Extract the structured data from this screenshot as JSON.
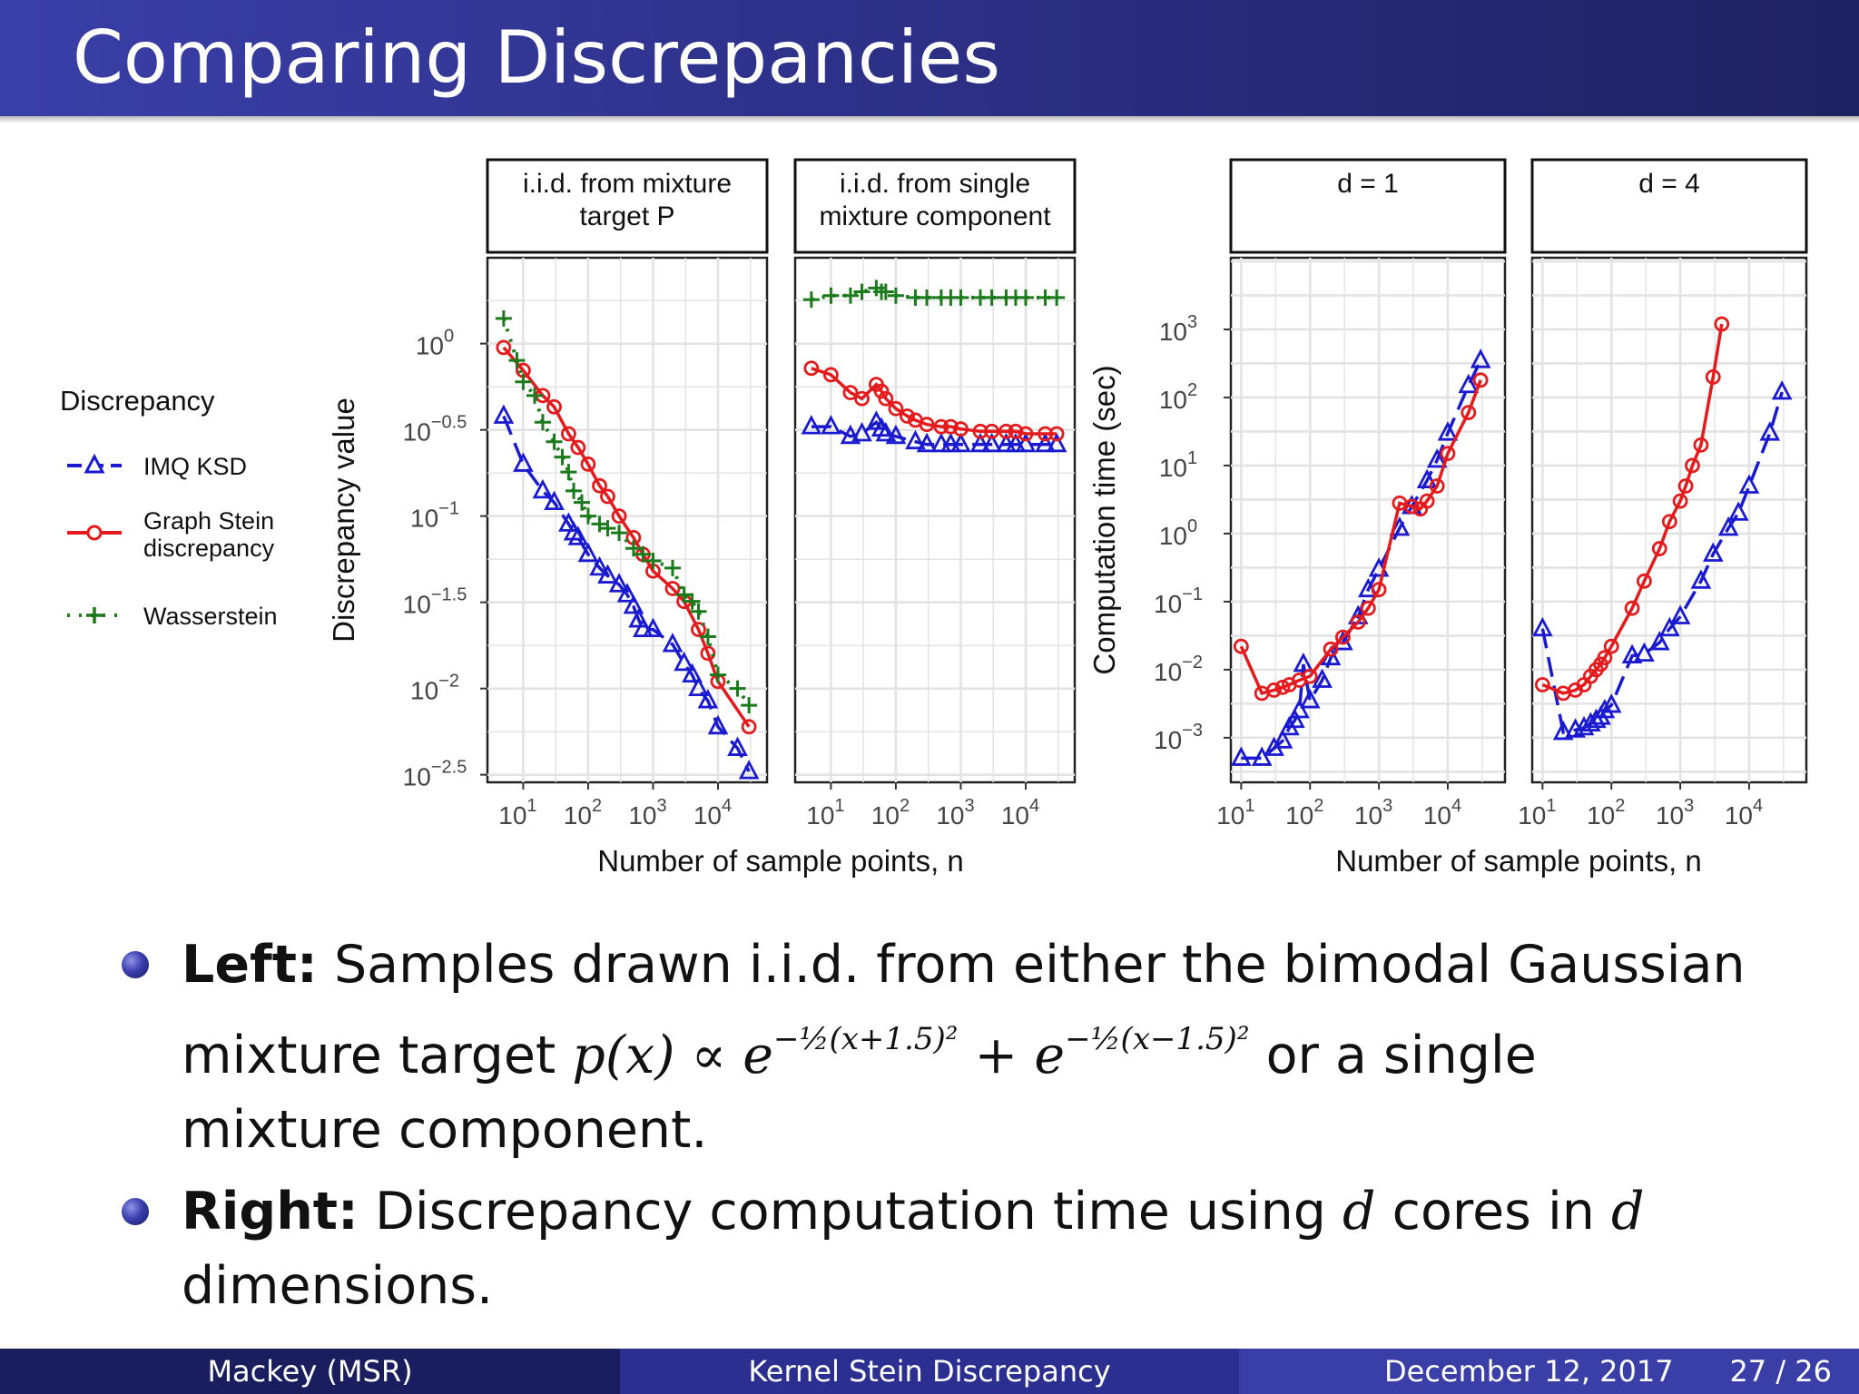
{
  "title": "Comparing Discrepancies",
  "legend": {
    "title": "Discrepancy",
    "items": [
      {
        "label": "IMQ KSD",
        "color": "#1a1ad0"
      },
      {
        "label": "Graph Stein discrepancy",
        "color": "#e41a1c"
      },
      {
        "label": "Wasserstein",
        "color": "#1b7a1b"
      }
    ]
  },
  "chart_data": [
    {
      "type": "line",
      "panel": "i.i.d. from mixture target P",
      "title": "i.i.d. from mixture target P",
      "xlabel": "Number of sample points, n",
      "ylabel": "Discrepancy value",
      "xscale": "log10",
      "yscale": "log10",
      "xlim": [
        3.2,
        50000
      ],
      "ylim": [
        0.003,
        3
      ],
      "xticks": [
        "10^1",
        "10^2",
        "10^3",
        "10^4"
      ],
      "yticks": [
        "10^0",
        "10^-0.5",
        "10^-1",
        "10^-1.5",
        "10^-2",
        "10^-2.5"
      ],
      "grid": true,
      "series": [
        {
          "name": "IMQ KSD",
          "x": [
            5,
            10,
            20,
            30,
            50,
            60,
            70,
            100,
            150,
            200,
            300,
            400,
            500,
            600,
            700,
            1000,
            2000,
            3000,
            4000,
            5000,
            7000,
            10000,
            20000,
            30000
          ],
          "y": [
            0.38,
            0.2,
            0.14,
            0.12,
            0.09,
            0.08,
            0.075,
            0.06,
            0.05,
            0.045,
            0.04,
            0.035,
            0.03,
            0.025,
            0.022,
            0.022,
            0.018,
            0.014,
            0.012,
            0.01,
            0.0085,
            0.006,
            0.0045,
            0.0033
          ]
        },
        {
          "name": "Graph Stein discrepancy",
          "x": [
            5,
            10,
            20,
            30,
            50,
            70,
            100,
            150,
            200,
            300,
            500,
            700,
            1000,
            2000,
            3000,
            5000,
            7000,
            10000,
            30000
          ],
          "y": [
            0.95,
            0.7,
            0.5,
            0.43,
            0.3,
            0.25,
            0.2,
            0.15,
            0.13,
            0.1,
            0.075,
            0.06,
            0.048,
            0.038,
            0.032,
            0.022,
            0.016,
            0.011,
            0.006
          ]
        },
        {
          "name": "Wasserstein",
          "x": [
            5,
            8,
            10,
            15,
            20,
            30,
            40,
            50,
            60,
            80,
            100,
            150,
            200,
            300,
            500,
            700,
            1000,
            2000,
            3000,
            4000,
            5000,
            7000,
            10000,
            20000,
            30000
          ],
          "y": [
            1.4,
            0.8,
            0.6,
            0.5,
            0.35,
            0.27,
            0.22,
            0.18,
            0.14,
            0.12,
            0.1,
            0.09,
            0.085,
            0.08,
            0.065,
            0.06,
            0.055,
            0.05,
            0.035,
            0.032,
            0.028,
            0.02,
            0.012,
            0.01,
            0.008
          ]
        }
      ]
    },
    {
      "type": "line",
      "panel": "i.i.d. from single mixture component",
      "title": "i.i.d. from single mixture component",
      "xlabel": "Number of sample points, n",
      "ylabel": "Discrepancy value",
      "xscale": "log10",
      "yscale": "log10",
      "xlim": [
        3.2,
        50000
      ],
      "ylim": [
        0.003,
        3
      ],
      "xticks": [
        "10^1",
        "10^2",
        "10^3",
        "10^4"
      ],
      "grid": true,
      "series": [
        {
          "name": "IMQ KSD",
          "x": [
            5,
            10,
            20,
            30,
            50,
            60,
            70,
            100,
            200,
            300,
            500,
            700,
            1000,
            2000,
            3000,
            5000,
            7000,
            10000,
            20000,
            30000
          ],
          "y": [
            0.33,
            0.33,
            0.29,
            0.3,
            0.35,
            0.32,
            0.3,
            0.29,
            0.27,
            0.26,
            0.26,
            0.26,
            0.26,
            0.26,
            0.26,
            0.26,
            0.26,
            0.26,
            0.26,
            0.26
          ]
        },
        {
          "name": "Graph Stein discrepancy",
          "x": [
            5,
            10,
            20,
            30,
            50,
            60,
            70,
            100,
            150,
            200,
            300,
            500,
            700,
            1000,
            2000,
            3000,
            5000,
            7000,
            10000,
            20000,
            30000
          ],
          "y": [
            0.72,
            0.66,
            0.52,
            0.48,
            0.58,
            0.53,
            0.48,
            0.42,
            0.38,
            0.36,
            0.34,
            0.33,
            0.33,
            0.32,
            0.31,
            0.31,
            0.31,
            0.31,
            0.3,
            0.3,
            0.3
          ]
        },
        {
          "name": "Wasserstein",
          "x": [
            5,
            10,
            20,
            30,
            50,
            60,
            70,
            100,
            200,
            300,
            500,
            700,
            1000,
            2000,
            3000,
            5000,
            7000,
            10000,
            20000,
            30000
          ],
          "y": [
            1.8,
            1.9,
            1.9,
            2.0,
            2.1,
            2.0,
            2.0,
            1.9,
            1.85,
            1.85,
            1.85,
            1.85,
            1.85,
            1.85,
            1.85,
            1.85,
            1.85,
            1.85,
            1.85,
            1.85
          ]
        }
      ]
    },
    {
      "type": "line",
      "panel": "d = 1",
      "title": "d = 1",
      "xlabel": "Number of sample points, n",
      "ylabel": "Computation time (sec)",
      "xscale": "log10",
      "yscale": "log10",
      "xlim": [
        8,
        60000
      ],
      "ylim": [
        0.00025,
        10000
      ],
      "xticks": [
        "10^1",
        "10^2",
        "10^3",
        "10^4"
      ],
      "yticks": [
        "10^3",
        "10^2",
        "10^1",
        "10^0",
        "10^-1",
        "10^-2",
        "10^-3"
      ],
      "grid": true,
      "series": [
        {
          "name": "IMQ KSD",
          "x": [
            10,
            20,
            30,
            40,
            50,
            60,
            70,
            80,
            100,
            150,
            200,
            300,
            500,
            700,
            1000,
            2000,
            3000,
            5000,
            7000,
            10000,
            20000,
            30000
          ],
          "y": [
            0.0005,
            0.0005,
            0.0007,
            0.0009,
            0.0014,
            0.0018,
            0.0025,
            0.012,
            0.0035,
            0.007,
            0.015,
            0.025,
            0.06,
            0.15,
            0.3,
            1.2,
            2.5,
            6,
            12,
            30,
            150,
            350
          ]
        },
        {
          "name": "Graph Stein discrepancy",
          "x": [
            10,
            20,
            30,
            40,
            50,
            70,
            100,
            200,
            300,
            500,
            700,
            1000,
            2000,
            3000,
            4000,
            5000,
            7000,
            10000,
            20000,
            30000
          ],
          "y": [
            0.022,
            0.0045,
            0.005,
            0.0055,
            0.006,
            0.007,
            0.008,
            0.02,
            0.03,
            0.05,
            0.08,
            0.15,
            2.8,
            2.5,
            2.3,
            3,
            5,
            15,
            60,
            180
          ]
        }
      ]
    },
    {
      "type": "line",
      "panel": "d = 4",
      "title": "d = 4",
      "xlabel": "Number of sample points, n",
      "ylabel": "Computation time (sec)",
      "xscale": "log10",
      "yscale": "log10",
      "xlim": [
        8,
        60000
      ],
      "ylim": [
        0.00025,
        10000
      ],
      "xticks": [
        "10^1",
        "10^2",
        "10^3",
        "10^4"
      ],
      "grid": true,
      "series": [
        {
          "name": "IMQ KSD",
          "x": [
            10,
            20,
            30,
            40,
            50,
            60,
            70,
            80,
            100,
            200,
            300,
            500,
            700,
            1000,
            2000,
            3000,
            5000,
            7000,
            10000,
            20000,
            30000
          ],
          "y": [
            0.04,
            0.0012,
            0.0013,
            0.0014,
            0.0016,
            0.0018,
            0.002,
            0.0025,
            0.003,
            0.016,
            0.017,
            0.025,
            0.04,
            0.06,
            0.2,
            0.5,
            1.2,
            2,
            5,
            30,
            120
          ]
        },
        {
          "name": "Graph Stein discrepancy",
          "x": [
            10,
            20,
            30,
            40,
            50,
            60,
            70,
            80,
            100,
            200,
            300,
            500,
            700,
            1000,
            1200,
            1500,
            2000,
            3000,
            4000
          ],
          "y": [
            0.006,
            0.0045,
            0.005,
            0.006,
            0.008,
            0.01,
            0.012,
            0.015,
            0.022,
            0.08,
            0.2,
            0.6,
            1.5,
            3,
            5,
            10,
            20,
            200,
            1200
          ]
        }
      ]
    }
  ],
  "bullets": [
    {
      "bold": "Left:",
      "line1": "Samples drawn i.i.d. from either the bimodal Gaussian",
      "line2a": "mixture target",
      "math": "p(x) ∝ e",
      "exp1": "−½(x+1.5)²",
      "plus": " + e",
      "exp2": "−½(x−1.5)²",
      "line2b": "or a single",
      "line3": "mixture component."
    },
    {
      "bold": "Right:",
      "text1": "Discrepancy computation time using",
      "var1": "d",
      "text2": "cores in",
      "var2": "d",
      "line2": "dimensions."
    }
  ],
  "footer": {
    "author": "Mackey  (MSR)",
    "talk": "Kernel Stein Discrepancy",
    "date": "December 12, 2017",
    "page": "27 / 26"
  }
}
